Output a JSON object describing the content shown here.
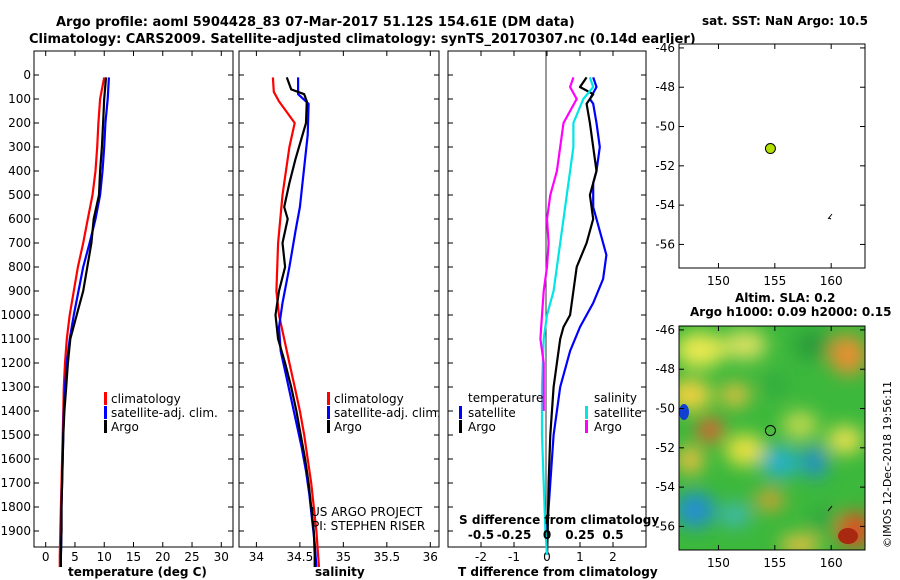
{
  "header": {
    "title_line1": "Argo profile: aoml 5904428_83 07-Mar-2017 51.12S 154.61E (DM data)",
    "title_line2": "Climatology: CARS2009. Satellite-adjusted climatology: synTS_20170307.nc (0.14d earlier)"
  },
  "colors": {
    "climatology": "#ff0000",
    "satellite": "#0000ff",
    "argo": "#000000",
    "sat_salinity": "#00e5e5",
    "argo_salinity": "#ff00ff",
    "marker": "#b0e000"
  },
  "chart_data": [
    {
      "id": "temperature",
      "type": "line",
      "xlabel": "temperature (deg C)",
      "ylabel": "",
      "xlim": [
        -2,
        32
      ],
      "ylim": [
        2070,
        0
      ],
      "xticks": [
        0,
        5,
        10,
        15,
        20,
        25,
        30
      ],
      "yticks": [
        0,
        100,
        200,
        300,
        400,
        500,
        600,
        700,
        800,
        900,
        1000,
        1100,
        1200,
        1300,
        1400,
        1500,
        1600,
        1700,
        1800,
        1900,
        2000
      ],
      "legend": [
        "climatology",
        "satellite-adj. clim.",
        "Argo"
      ],
      "series": [
        {
          "name": "climatology",
          "color": "#ff0000",
          "points": [
            [
              10.0,
              10
            ],
            [
              9.3,
              100
            ],
            [
              9.0,
              200
            ],
            [
              8.8,
              300
            ],
            [
              8.5,
              400
            ],
            [
              8.0,
              500
            ],
            [
              7.2,
              600
            ],
            [
              6.4,
              700
            ],
            [
              5.5,
              800
            ],
            [
              4.8,
              900
            ],
            [
              4.1,
              1000
            ],
            [
              3.6,
              1100
            ],
            [
              3.3,
              1200
            ],
            [
              3.1,
              1300
            ],
            [
              3.0,
              1400
            ],
            [
              2.9,
              1500
            ],
            [
              2.8,
              1600
            ],
            [
              2.7,
              1700
            ],
            [
              2.6,
              1800
            ],
            [
              2.5,
              1900
            ],
            [
              2.4,
              2000
            ],
            [
              2.4,
              2050
            ]
          ]
        },
        {
          "name": "satellite-adj. clim.",
          "color": "#0000ff",
          "points": [
            [
              10.8,
              10
            ],
            [
              10.6,
              100
            ],
            [
              10.2,
              200
            ],
            [
              10.0,
              300
            ],
            [
              9.7,
              400
            ],
            [
              9.3,
              500
            ],
            [
              8.5,
              600
            ],
            [
              7.5,
              700
            ],
            [
              6.4,
              800
            ],
            [
              5.6,
              900
            ],
            [
              4.8,
              1000
            ],
            [
              4.1,
              1100
            ],
            [
              3.6,
              1200
            ],
            [
              3.3,
              1300
            ],
            [
              3.1,
              1400
            ],
            [
              3.0,
              1500
            ],
            [
              2.9,
              1600
            ],
            [
              2.8,
              1700
            ],
            [
              2.7,
              1800
            ],
            [
              2.7,
              1900
            ],
            [
              2.6,
              2000
            ],
            [
              2.6,
              2050
            ]
          ]
        },
        {
          "name": "Argo",
          "color": "#000000",
          "points": [
            [
              10.3,
              10
            ],
            [
              10.0,
              100
            ],
            [
              9.8,
              200
            ],
            [
              9.6,
              300
            ],
            [
              9.3,
              400
            ],
            [
              9.1,
              500
            ],
            [
              8.2,
              600
            ],
            [
              7.8,
              700
            ],
            [
              7.1,
              800
            ],
            [
              6.4,
              900
            ],
            [
              5.3,
              1000
            ],
            [
              4.2,
              1100
            ],
            [
              3.8,
              1200
            ],
            [
              3.5,
              1300
            ],
            [
              3.2,
              1400
            ],
            [
              3.0,
              1500
            ],
            [
              2.9,
              1600
            ],
            [
              2.8,
              1700
            ],
            [
              2.7,
              1800
            ],
            [
              2.7,
              1900
            ],
            [
              2.6,
              2000
            ],
            [
              2.6,
              2050
            ]
          ]
        }
      ]
    },
    {
      "id": "salinity",
      "type": "line",
      "xlabel": "salinity",
      "ylabel": "",
      "xlim": [
        33.8,
        36.1
      ],
      "ylim": [
        2070,
        0
      ],
      "xticks": [
        34,
        34.5,
        35,
        35.5,
        36
      ],
      "legend": [
        "climatology",
        "satellite-adj. clim.",
        "Argo"
      ],
      "annotation": [
        "US ARGO PROJECT",
        "PI: STEPHEN RISER"
      ],
      "series": [
        {
          "name": "climatology",
          "color": "#ff0000",
          "points": [
            [
              34.19,
              10
            ],
            [
              34.2,
              70
            ],
            [
              34.26,
              110
            ],
            [
              34.34,
              150
            ],
            [
              34.44,
              200
            ],
            [
              34.38,
              300
            ],
            [
              34.3,
              500
            ],
            [
              34.25,
              700
            ],
            [
              34.23,
              900
            ],
            [
              34.26,
              1000
            ],
            [
              34.32,
              1100
            ],
            [
              34.38,
              1200
            ],
            [
              34.44,
              1300
            ],
            [
              34.5,
              1400
            ],
            [
              34.55,
              1500
            ],
            [
              34.59,
              1600
            ],
            [
              34.63,
              1700
            ],
            [
              34.66,
              1800
            ],
            [
              34.69,
              1900
            ],
            [
              34.71,
              2000
            ],
            [
              34.72,
              2050
            ]
          ]
        },
        {
          "name": "satellite-adj. clim.",
          "color": "#0000ff",
          "points": [
            [
              34.48,
              10
            ],
            [
              34.48,
              80
            ],
            [
              34.6,
              120
            ],
            [
              34.59,
              250
            ],
            [
              34.56,
              350
            ],
            [
              34.53,
              450
            ],
            [
              34.5,
              550
            ],
            [
              34.45,
              650
            ],
            [
              34.38,
              800
            ],
            [
              34.3,
              950
            ],
            [
              34.26,
              1050
            ],
            [
              34.28,
              1150
            ],
            [
              34.34,
              1250
            ],
            [
              34.4,
              1350
            ],
            [
              34.46,
              1450
            ],
            [
              34.52,
              1550
            ],
            [
              34.57,
              1650
            ],
            [
              34.61,
              1750
            ],
            [
              34.64,
              1850
            ],
            [
              34.67,
              1950
            ],
            [
              34.69,
              2050
            ]
          ]
        },
        {
          "name": "Argo",
          "color": "#000000",
          "points": [
            [
              34.35,
              10
            ],
            [
              34.4,
              60
            ],
            [
              34.55,
              80
            ],
            [
              34.58,
              110
            ],
            [
              34.57,
              200
            ],
            [
              34.45,
              350
            ],
            [
              34.38,
              450
            ],
            [
              34.32,
              550
            ],
            [
              34.36,
              600
            ],
            [
              34.3,
              700
            ],
            [
              34.33,
              800
            ],
            [
              34.26,
              900
            ],
            [
              34.22,
              1000
            ],
            [
              34.25,
              1100
            ],
            [
              34.33,
              1200
            ],
            [
              34.4,
              1300
            ],
            [
              34.46,
              1400
            ],
            [
              34.51,
              1500
            ],
            [
              34.56,
              1600
            ],
            [
              34.6,
              1700
            ],
            [
              34.63,
              1800
            ],
            [
              34.66,
              1900
            ],
            [
              34.67,
              2000
            ],
            [
              34.67,
              2050
            ]
          ]
        }
      ]
    },
    {
      "id": "difference",
      "type": "line",
      "xlabel": "T difference from climatology",
      "ylabel": "",
      "xlim": [
        -3,
        3
      ],
      "ylim": [
        2070,
        0
      ],
      "xticks": [
        -2,
        -1,
        0,
        1,
        2
      ],
      "secondary_xticks": [
        "-0.5",
        "-0.25",
        "0",
        "0.25",
        "0.5"
      ],
      "secondary_xlabel": "S difference from climatology",
      "legend_groups": [
        {
          "title": "temperature",
          "items": [
            "satellite",
            "Argo"
          ]
        },
        {
          "title": "salinity",
          "items": [
            "satellite",
            "Argo"
          ]
        }
      ],
      "series": [
        {
          "name": "temperature satellite",
          "color": "#0000ff",
          "points": [
            [
              1.4,
              10
            ],
            [
              1.5,
              50
            ],
            [
              1.3,
              100
            ],
            [
              1.4,
              120
            ],
            [
              1.5,
              200
            ],
            [
              1.6,
              300
            ],
            [
              1.5,
              400
            ],
            [
              1.4,
              450
            ],
            [
              1.4,
              550
            ],
            [
              1.6,
              650
            ],
            [
              1.8,
              750
            ],
            [
              1.7,
              850
            ],
            [
              1.4,
              950
            ],
            [
              1.0,
              1050
            ],
            [
              0.7,
              1150
            ],
            [
              0.4,
              1300
            ],
            [
              0.2,
              1500
            ],
            [
              0.1,
              1700
            ],
            [
              0.0,
              1900
            ],
            [
              0.0,
              2000
            ]
          ]
        },
        {
          "name": "temperature Argo",
          "color": "#000000",
          "points": [
            [
              1.2,
              10
            ],
            [
              1.0,
              50
            ],
            [
              1.4,
              80
            ],
            [
              1.2,
              120
            ],
            [
              1.3,
              200
            ],
            [
              1.4,
              300
            ],
            [
              1.5,
              400
            ],
            [
              1.3,
              500
            ],
            [
              1.4,
              600
            ],
            [
              1.2,
              700
            ],
            [
              0.9,
              800
            ],
            [
              0.8,
              900
            ],
            [
              0.7,
              1000
            ],
            [
              0.5,
              1050
            ],
            [
              0.4,
              1100
            ],
            [
              0.3,
              1200
            ],
            [
              0.2,
              1300
            ],
            [
              0.1,
              1500
            ],
            [
              0.05,
              1700
            ],
            [
              0.02,
              1900
            ],
            [
              0.0,
              2000
            ]
          ]
        },
        {
          "name": "salinity satellite",
          "color": "#00e5e5",
          "points": [
            [
              1.3,
              10
            ],
            [
              1.4,
              50
            ],
            [
              1.1,
              100
            ],
            [
              0.8,
              200
            ],
            [
              0.8,
              300
            ],
            [
              0.7,
              400
            ],
            [
              0.6,
              500
            ],
            [
              0.5,
              600
            ],
            [
              0.4,
              700
            ],
            [
              0.3,
              800
            ],
            [
              0.2,
              900
            ],
            [
              0.0,
              1000
            ],
            [
              -0.1,
              1100
            ],
            [
              -0.15,
              1300
            ],
            [
              -0.15,
              1500
            ],
            [
              -0.1,
              1700
            ],
            [
              -0.05,
              1900
            ],
            [
              0.0,
              2000
            ]
          ]
        },
        {
          "name": "salinity Argo",
          "color": "#ff00ff",
          "points": [
            [
              0.8,
              10
            ],
            [
              0.7,
              50
            ],
            [
              0.9,
              100
            ],
            [
              0.5,
              200
            ],
            [
              0.4,
              300
            ],
            [
              0.3,
              400
            ],
            [
              0.1,
              500
            ],
            [
              0.0,
              600
            ],
            [
              0.05,
              700
            ],
            [
              0.0,
              800
            ],
            [
              -0.1,
              900
            ],
            [
              -0.15,
              1000
            ],
            [
              -0.2,
              1100
            ],
            [
              -0.1,
              1200
            ],
            [
              -0.1,
              1400
            ]
          ]
        }
      ]
    },
    {
      "id": "sst_map",
      "type": "scatter",
      "title": "sat. SST: NaN Argo: 10.5",
      "xlim": [
        146.5,
        163
      ],
      "ylim": [
        -57.2,
        -45.8
      ],
      "xticks": [
        150,
        155,
        160
      ],
      "yticks": [
        -46,
        -48,
        -50,
        -52,
        -54,
        -56
      ],
      "points": [
        {
          "lon": 154.61,
          "lat": -51.12
        }
      ]
    },
    {
      "id": "sla_map",
      "type": "heatmap",
      "title": "Altim. SLA: 0.2",
      "subtitle": "Argo h1000: 0.09 h2000: 0.15",
      "xlim": [
        146.5,
        163
      ],
      "ylim": [
        -57.2,
        -45.8
      ],
      "xticks": [
        150,
        155,
        160
      ],
      "yticks": [
        -46,
        -48,
        -50,
        -52,
        -54,
        -56
      ],
      "points": [
        {
          "lon": 154.61,
          "lat": -51.12
        }
      ]
    }
  ],
  "watermark": "©IMOS 12-Dec-2018 19:56:11"
}
